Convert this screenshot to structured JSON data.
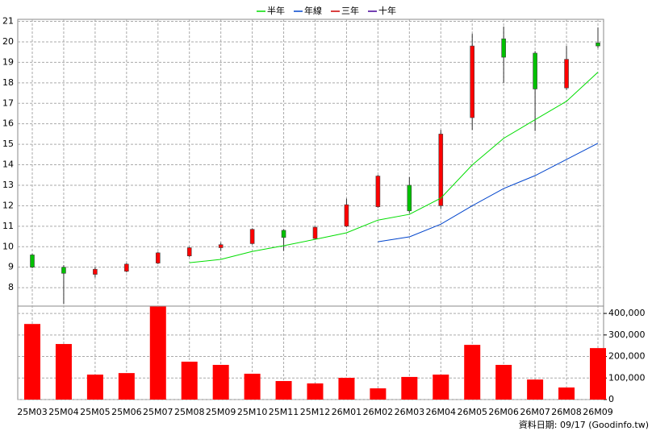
{
  "chart_data": [
    {
      "type": "candlestick",
      "up_color": "#ff0000",
      "down_color": "#00c000",
      "open": [
        9.6,
        9.0,
        8.65,
        8.8,
        9.2,
        9.55,
        9.95,
        10.15,
        10.8,
        10.4,
        11.0,
        11.95,
        13.0,
        12.0,
        16.3,
        20.15,
        19.45,
        17.75,
        19.95
      ],
      "high": [
        9.65,
        9.1,
        9.0,
        9.2,
        9.75,
        10.0,
        10.2,
        10.9,
        10.85,
        11.0,
        12.35,
        13.5,
        13.4,
        15.7,
        20.4,
        20.75,
        19.55,
        19.8,
        20.7
      ],
      "low": [
        8.95,
        7.2,
        8.5,
        8.75,
        9.15,
        9.5,
        9.8,
        10.1,
        9.8,
        10.35,
        10.95,
        11.9,
        11.65,
        11.85,
        15.7,
        18.0,
        15.65,
        17.65,
        19.7
      ],
      "close": [
        9.0,
        8.7,
        8.9,
        9.15,
        9.7,
        9.95,
        10.1,
        10.85,
        10.45,
        10.95,
        12.05,
        13.45,
        11.75,
        15.5,
        19.8,
        19.25,
        17.7,
        19.15,
        19.8
      ],
      "series": [
        {
          "name": "半年",
          "color": "#00dd00",
          "values": [
            null,
            null,
            null,
            null,
            null,
            9.22,
            9.38,
            9.77,
            10.05,
            10.36,
            10.68,
            11.3,
            11.58,
            12.37,
            13.99,
            15.29,
            16.2,
            17.1,
            18.52
          ]
        },
        {
          "name": "年線",
          "color": "#0044cc",
          "values": [
            null,
            null,
            null,
            null,
            null,
            null,
            null,
            null,
            null,
            null,
            null,
            10.24,
            10.48,
            11.1,
            12.0,
            12.84,
            13.47,
            14.26,
            15.05
          ]
        },
        {
          "name": "三年",
          "color": "#cc0000",
          "values": [
            null,
            null,
            null,
            null,
            null,
            null,
            null,
            null,
            null,
            null,
            null,
            null,
            null,
            null,
            null,
            null,
            null,
            null,
            null
          ]
        },
        {
          "name": "十年",
          "color": "#440099",
          "values": [
            null,
            null,
            null,
            null,
            null,
            null,
            null,
            null,
            null,
            null,
            null,
            null,
            null,
            null,
            null,
            null,
            null,
            null,
            null
          ]
        }
      ],
      "ylim": [
        7.1,
        21.1
      ],
      "yticks": [
        8,
        9,
        10,
        11,
        12,
        13,
        14,
        15,
        16,
        17,
        18,
        19,
        20,
        21
      ],
      "grid": true
    },
    {
      "type": "bar",
      "color": "#ff0000",
      "categories": [
        "25M03",
        "25M04",
        "25M05",
        "25M06",
        "25M07",
        "25M08",
        "25M09",
        "25M10",
        "25M11",
        "25M12",
        "26M01",
        "26M02",
        "26M03",
        "26M04",
        "26M05",
        "26M06",
        "26M07",
        "26M08",
        "26M09"
      ],
      "values": [
        351000,
        258000,
        116000,
        123000,
        432000,
        176000,
        161000,
        120000,
        86000,
        75000,
        101000,
        52000,
        105000,
        116000,
        254000,
        161000,
        93000,
        56000,
        239000
      ],
      "ylim": [
        0,
        434000
      ],
      "yticks": [
        0,
        {
          "value": 100000,
          "label": "100,000"
        },
        {
          "value": 200000,
          "label": "200,000"
        },
        {
          "value": 300000,
          "label": "300,000"
        },
        {
          "value": 400000,
          "label": "400,000"
        }
      ],
      "grid": true,
      "note": "資料日期: 09/17  (Goodinfo.tw)"
    }
  ]
}
